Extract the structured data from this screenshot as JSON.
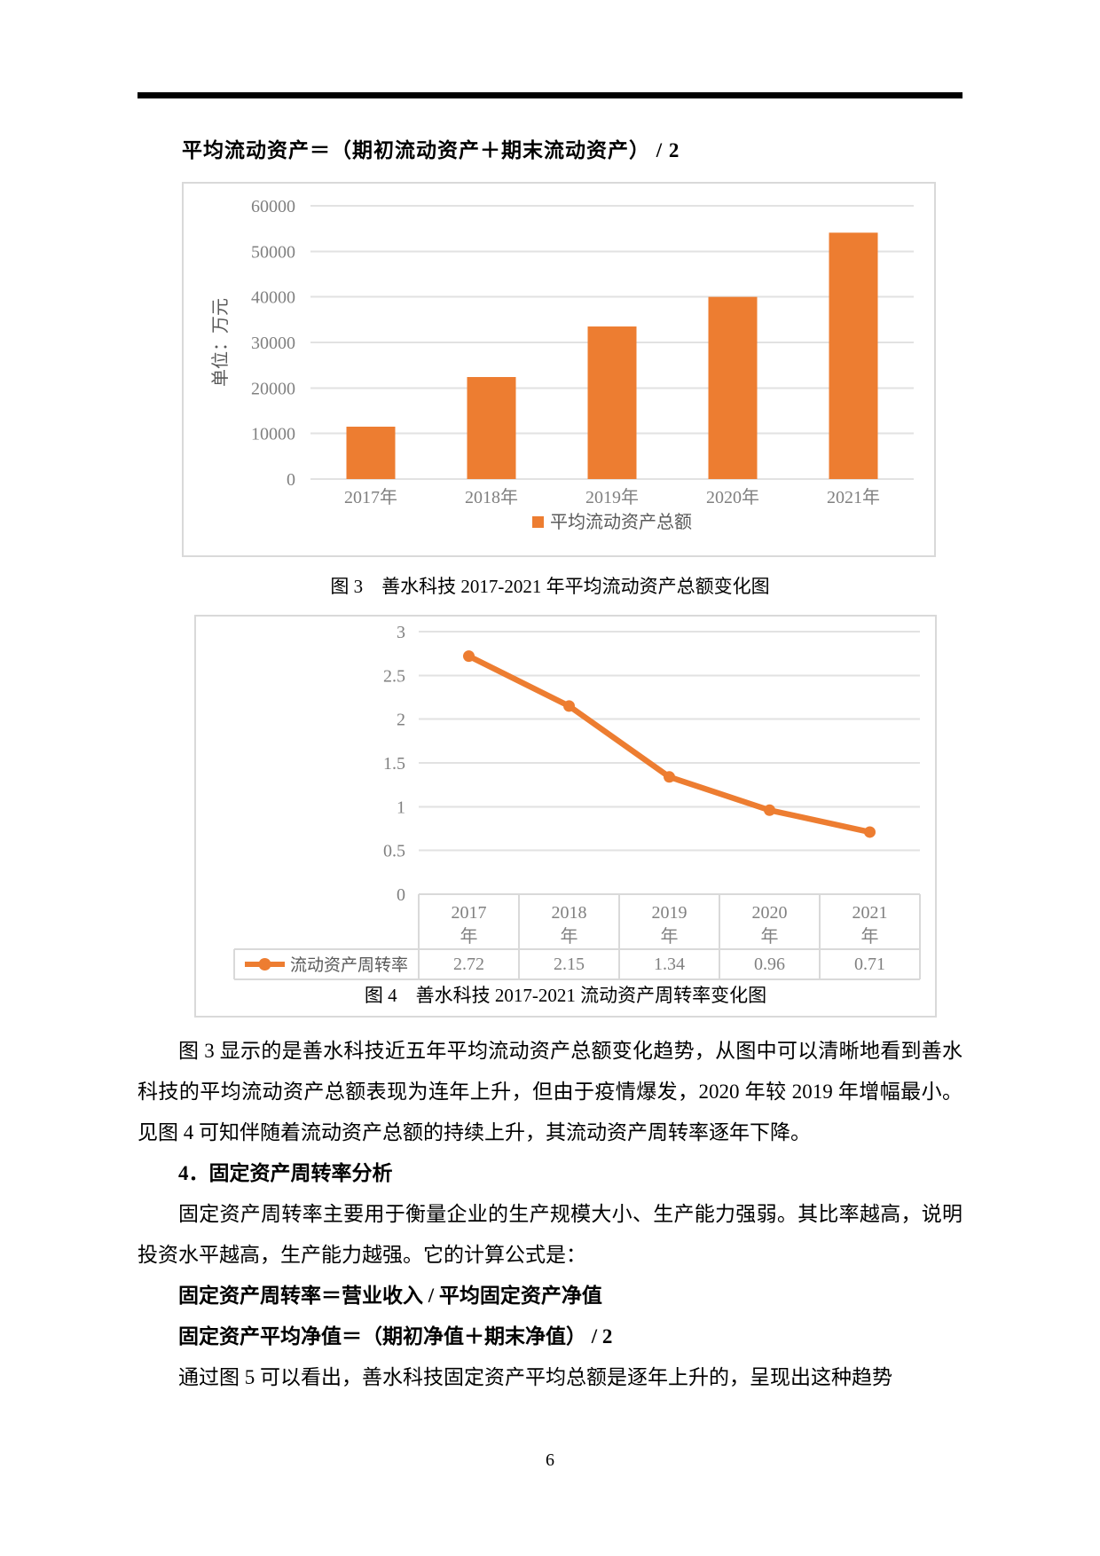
{
  "page": {
    "number": "6"
  },
  "colors": {
    "accent_orange": "#ED7D31",
    "gridline": "#E2E2E2",
    "table_border": "#D9D9D9",
    "axis_text": "#808080",
    "legend_text": "#595959",
    "rule_black": "#000000"
  },
  "texts": {
    "formula_top": "平均流动资产＝（期初流动资产＋期末流动资产） / 2"
  },
  "captions": {
    "fig3": "图 3　善水科技 2017-2021 年平均流动资产总额变化图",
    "fig4": "图 4　善水科技 2017-2021 流动资产周转率变化图"
  },
  "body": {
    "blocks": [
      {
        "style": "para-indent",
        "text": "图 3 显示的是善水科技近五年平均流动资产总额变化趋势，从图中可以清晰地看到善水科技的平均流动资产总额表现为连年上升，但由于疫情爆发，2020 年较 2019 年增幅最小。见图 4 可知伴随着流动资产总额的持续上升，其流动资产周转率逐年下降。"
      },
      {
        "style": "heading",
        "text": "4．固定资产周转率分析"
      },
      {
        "style": "para-indent",
        "text": "固定资产周转率主要用于衡量企业的生产规模大小、生产能力强弱。其比率越高，说明投资水平越高，生产能力越强。它的计算公式是："
      },
      {
        "style": "formula-line",
        "text": "固定资产周转率＝营业收入 / 平均固定资产净值"
      },
      {
        "style": "formula-line",
        "text": "固定资产平均净值＝（期初净值＋期末净值） / 2"
      },
      {
        "style": "para-indent",
        "text": "通过图 5 可以看出，善水科技固定资产平均总额是逐年上升的，呈现出这种趋势"
      }
    ]
  },
  "chart_data": [
    {
      "type": "bar",
      "title": "",
      "categories": [
        "2017年",
        "2018年",
        "2019年",
        "2020年",
        "2021年"
      ],
      "values": [
        11500,
        22400,
        33500,
        40000,
        54100
      ],
      "xlabel": "",
      "ylabel": "单位：万元",
      "ylim": [
        0,
        60000
      ],
      "ytick_step": 10000,
      "yticks": [
        "0",
        "10000",
        "20000",
        "30000",
        "40000",
        "50000",
        "60000"
      ],
      "grid": true,
      "legend": [
        "平均流动资产总额"
      ],
      "legend_position": "bottom",
      "bar_color": "#ED7D31"
    },
    {
      "type": "line",
      "title": "",
      "categories": [
        "2017年",
        "2018年",
        "2019年",
        "2020年",
        "2021年"
      ],
      "categories_wrapped": [
        [
          "2017",
          "年"
        ],
        [
          "2018",
          "年"
        ],
        [
          "2019",
          "年"
        ],
        [
          "2020",
          "年"
        ],
        [
          "2021",
          "年"
        ]
      ],
      "series": [
        {
          "name": "流动资产周转率",
          "values": [
            2.72,
            2.15,
            1.34,
            0.96,
            0.71
          ]
        }
      ],
      "value_labels": [
        "2.72",
        "2.15",
        "1.34",
        "0.96",
        "0.71"
      ],
      "ylim": [
        0,
        3
      ],
      "ytick_step": 0.5,
      "yticks": [
        "0",
        "0.5",
        "1",
        "1.5",
        "2",
        "2.5",
        "3"
      ],
      "grid": true,
      "data_table": true,
      "legend_position": "table-left",
      "line_color": "#ED7D31",
      "marker": "circle"
    }
  ]
}
